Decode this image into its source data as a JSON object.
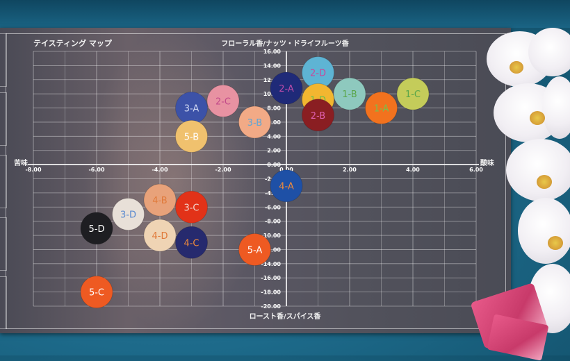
{
  "chart_data": {
    "type": "scatter",
    "title": "テイスティング マップ",
    "axis_labels": {
      "top": "フローラル香/ナッツ・ドライフルーツ香",
      "bottom": "ロースト香/スパイス香",
      "left": "苦味",
      "right": "酸味"
    },
    "xlim": [
      -8,
      6
    ],
    "ylim": [
      -20,
      16
    ],
    "x_ticks": [
      -8,
      -6,
      -4,
      -2,
      0,
      2,
      4,
      6
    ],
    "x_tick_labels": [
      "-8.00",
      "-6.00",
      "-4.00",
      "-2.00",
      "0.00",
      "2.00",
      "4.00",
      "6.00"
    ],
    "y_ticks": [
      16,
      14,
      12,
      10,
      8,
      6,
      4,
      2,
      0,
      -2,
      -4,
      -6,
      -8,
      -10,
      -12,
      -14,
      -16,
      -18,
      -20
    ],
    "y_tick_labels": [
      "16.00",
      "14.00",
      "12.00",
      "10.00",
      "8.00",
      "6.00",
      "4.00",
      "2.00",
      "0.00",
      "-2.00",
      "-4.00",
      "-6.00",
      "-8.00",
      "-10.00",
      "-12.00",
      "-14.00",
      "-16.00",
      "-18.00",
      "-20.00"
    ],
    "grid": true,
    "points": [
      {
        "label": "2-D",
        "x": 1.0,
        "y": 13.0,
        "color": "#5eb4d4",
        "text_color": "#c8489a"
      },
      {
        "label": "2-A",
        "x": 0.0,
        "y": 10.8,
        "color": "#1f2a78",
        "text_color": "#b84aa8"
      },
      {
        "label": "1-D",
        "x": 1.0,
        "y": 9.2,
        "color": "#f2b630",
        "text_color": "#6cbf4a"
      },
      {
        "label": "2-B",
        "x": 1.0,
        "y": 7.0,
        "color": "#8a1e22",
        "text_color": "#e060b0"
      },
      {
        "label": "1-B",
        "x": 2.0,
        "y": 10.0,
        "color": "#8ec9be",
        "text_color": "#5aa64a"
      },
      {
        "label": "1-A",
        "x": 3.0,
        "y": 8.0,
        "color": "#f2721e",
        "text_color": "#7ac04a"
      },
      {
        "label": "1-C",
        "x": 4.0,
        "y": 10.0,
        "color": "#c4cc5a",
        "text_color": "#5aa64a"
      },
      {
        "label": "2-C",
        "x": -2.0,
        "y": 9.0,
        "color": "#e892a2",
        "text_color": "#c24a8a"
      },
      {
        "label": "3-A",
        "x": -3.0,
        "y": 8.0,
        "color": "#3c52a8",
        "text_color": "#d0d8f2"
      },
      {
        "label": "3-B",
        "x": -1.0,
        "y": 6.0,
        "color": "#f2aa86",
        "text_color": "#5aa6d8"
      },
      {
        "label": "5-B",
        "x": -3.0,
        "y": 4.0,
        "color": "#f0c16e",
        "text_color": "#ffffff"
      },
      {
        "label": "4-A",
        "x": 0.0,
        "y": -3.0,
        "color": "#1e50a6",
        "text_color": "#f08a3a"
      },
      {
        "label": "4-B",
        "x": -4.0,
        "y": -5.0,
        "color": "#e8a27a",
        "text_color": "#e07a3a"
      },
      {
        "label": "3-C",
        "x": -3.0,
        "y": -6.0,
        "color": "#e23218",
        "text_color": "#f2d8d0"
      },
      {
        "label": "3-D",
        "x": -5.0,
        "y": -7.0,
        "color": "#e8e0d8",
        "text_color": "#5a8ad0"
      },
      {
        "label": "4-D",
        "x": -4.0,
        "y": -10.0,
        "color": "#efd4b4",
        "text_color": "#e07a3a"
      },
      {
        "label": "4-C",
        "x": -3.0,
        "y": -11.0,
        "color": "#262a6e",
        "text_color": "#f08a3a"
      },
      {
        "label": "5-D",
        "x": -6.0,
        "y": -9.0,
        "color": "#1e1e22",
        "text_color": "#ffffff"
      },
      {
        "label": "5-A",
        "x": -1.0,
        "y": -12.0,
        "color": "#ee5a22",
        "text_color": "#ffffff"
      },
      {
        "label": "5-C",
        "x": -6.0,
        "y": -18.0,
        "color": "#ee5a22",
        "text_color": "#ffffff"
      }
    ]
  }
}
